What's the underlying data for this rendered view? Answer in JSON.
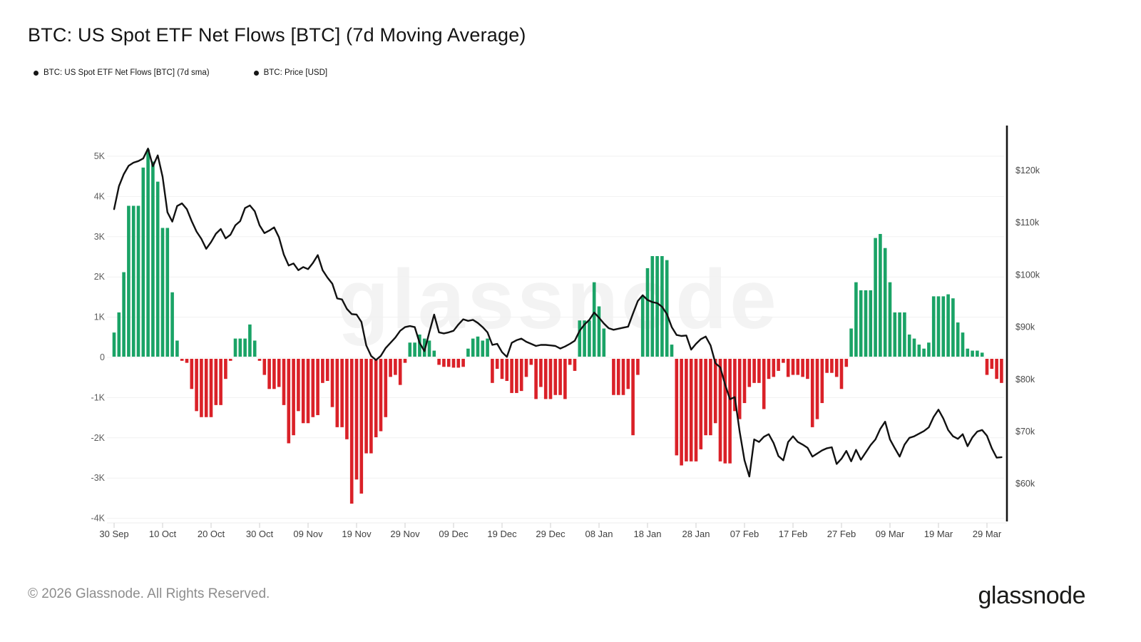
{
  "title": "BTC: US Spot ETF Net Flows [BTC] (7d Moving Average)",
  "legend": [
    {
      "label": "BTC: US Spot ETF Net Flows [BTC] (7d sma)",
      "dot_color": "#161616"
    },
    {
      "label": "BTC: Price [USD]",
      "dot_color": "#161616"
    }
  ],
  "watermark": "glassnode",
  "footer": {
    "copyright": "© 2026 Glassnode. All Rights Reserved.",
    "logo": "glassnode"
  },
  "colors": {
    "bar_positive": "#1AA366",
    "bar_negative": "#DA2128",
    "price_line": "#111111",
    "gridline": "#f1f1f1",
    "bottom_axis": "#ececec",
    "tick_mark": "#cfcfcf",
    "right_axis_line": "#141414"
  },
  "chart_data": {
    "type": "bar",
    "title": "BTC: US Spot ETF Net Flows [BTC] (7d Moving Average)",
    "x_start_label": "30 Sep",
    "x_ticks": [
      {
        "day": 0,
        "label": "30 Sep"
      },
      {
        "day": 10,
        "label": "10 Oct"
      },
      {
        "day": 20,
        "label": "20 Oct"
      },
      {
        "day": 30,
        "label": "30 Oct"
      },
      {
        "day": 40,
        "label": "09 Nov"
      },
      {
        "day": 50,
        "label": "19 Nov"
      },
      {
        "day": 60,
        "label": "29 Nov"
      },
      {
        "day": 70,
        "label": "09 Dec"
      },
      {
        "day": 80,
        "label": "19 Dec"
      },
      {
        "day": 90,
        "label": "29 Dec"
      },
      {
        "day": 100,
        "label": "08 Jan"
      },
      {
        "day": 110,
        "label": "18 Jan"
      },
      {
        "day": 120,
        "label": "28 Jan"
      },
      {
        "day": 130,
        "label": "07 Feb"
      },
      {
        "day": 140,
        "label": "17 Feb"
      },
      {
        "day": 150,
        "label": "27 Feb"
      },
      {
        "day": 160,
        "label": "09 Mar"
      },
      {
        "day": 170,
        "label": "19 Mar"
      },
      {
        "day": 180,
        "label": "29 Mar"
      }
    ],
    "left_axis": {
      "unit": "thousand BTC",
      "ticks": [
        "5K",
        "4K",
        "3K",
        "2K",
        "1K",
        "0",
        "-1K",
        "-2K",
        "-3K",
        "-4K"
      ],
      "values": [
        5,
        4,
        3,
        2,
        1,
        0,
        -1,
        -2,
        -3,
        -4
      ],
      "ylim": [
        -4.5,
        5.5
      ]
    },
    "right_axis": {
      "unit": "thousand USD",
      "ticks": [
        "$120k",
        "$110k",
        "$100k",
        "$90k",
        "$80k",
        "$70k",
        "$60k"
      ],
      "values": [
        120,
        110,
        100,
        90,
        80,
        70,
        60
      ],
      "ylim": [
        58,
        126
      ]
    },
    "grid": "horizontal-only",
    "legend_position": "top-left",
    "series": [
      {
        "name": "BTC: US Spot ETF Net Flows [BTC] (7d sma)",
        "type": "bar",
        "axis": "left",
        "unit": "K BTC",
        "values": [
          0.6,
          1.1,
          2.1,
          3.75,
          3.75,
          3.75,
          4.7,
          5.15,
          4.85,
          4.35,
          3.2,
          3.2,
          1.6,
          0.4,
          -0.05,
          -0.1,
          -0.75,
          -1.3,
          -1.45,
          -1.45,
          -1.45,
          -1.15,
          -1.15,
          -0.5,
          -0.05,
          0.45,
          0.45,
          0.45,
          0.8,
          0.4,
          -0.05,
          -0.4,
          -0.75,
          -0.75,
          -0.7,
          -1.15,
          -2.1,
          -1.9,
          -1.3,
          -1.6,
          -1.6,
          -1.45,
          -1.4,
          -0.6,
          -0.55,
          -1.2,
          -1.7,
          -1.7,
          -2.0,
          -3.6,
          -3.0,
          -3.35,
          -2.35,
          -2.35,
          -1.95,
          -1.8,
          -1.45,
          -0.45,
          -0.4,
          -0.65,
          -0.1,
          0.35,
          0.35,
          0.55,
          0.45,
          0.4,
          0.15,
          -0.15,
          -0.2,
          -0.2,
          -0.22,
          -0.22,
          -0.2,
          0.2,
          0.45,
          0.5,
          0.4,
          0.45,
          -0.6,
          -0.25,
          -0.5,
          -0.55,
          -0.85,
          -0.85,
          -0.8,
          -0.45,
          -0.15,
          -1.0,
          -0.7,
          -1.0,
          -1.0,
          -0.9,
          -0.9,
          -1.0,
          -0.15,
          -0.3,
          0.9,
          0.9,
          0.9,
          1.85,
          1.25,
          0.7,
          0.0,
          -0.9,
          -0.9,
          -0.9,
          -0.75,
          -1.9,
          -0.4,
          1.5,
          2.2,
          2.5,
          2.5,
          2.5,
          2.4,
          0.3,
          -2.4,
          -2.65,
          -2.55,
          -2.55,
          -2.55,
          -2.25,
          -1.9,
          -1.9,
          -1.6,
          -2.55,
          -2.6,
          -2.6,
          -1.3,
          -1.5,
          -1.1,
          -0.7,
          -0.6,
          -0.6,
          -1.25,
          -0.5,
          -0.45,
          -0.3,
          -0.1,
          -0.45,
          -0.4,
          -0.4,
          -0.45,
          -0.5,
          -1.7,
          -1.5,
          -1.1,
          -0.35,
          -0.35,
          -0.45,
          -0.75,
          -0.2,
          0.7,
          1.85,
          1.65,
          1.65,
          1.65,
          2.95,
          3.05,
          2.7,
          1.85,
          1.1,
          1.1,
          1.1,
          0.55,
          0.45,
          0.3,
          0.2,
          0.35,
          1.5,
          1.5,
          1.5,
          1.55,
          1.45,
          0.85,
          0.6,
          0.2,
          0.15,
          0.15,
          0.1,
          -0.4,
          -0.25,
          -0.5,
          -0.6
        ]
      },
      {
        "name": "BTC: Price [USD]",
        "type": "line",
        "axis": "right",
        "unit": "k USD",
        "values": [
          112.6,
          117.0,
          119.3,
          120.9,
          121.5,
          121.8,
          122.3,
          124.2,
          120.8,
          122.9,
          118.8,
          112.0,
          110.2,
          113.2,
          113.7,
          112.6,
          110.3,
          108.3,
          106.9,
          105.0,
          106.3,
          107.9,
          108.8,
          107.0,
          107.7,
          109.5,
          110.3,
          112.8,
          113.3,
          112.2,
          109.5,
          108.0,
          108.5,
          109.1,
          107.2,
          103.9,
          101.8,
          102.2,
          100.9,
          101.5,
          101.1,
          102.3,
          103.8,
          100.9,
          99.5,
          98.3,
          95.5,
          95.3,
          93.5,
          92.5,
          92.4,
          91.0,
          86.5,
          84.5,
          83.7,
          84.5,
          86.0,
          87.0,
          88.0,
          89.3,
          90.0,
          90.2,
          90.0,
          87.0,
          85.4,
          89.0,
          92.4,
          89.0,
          88.8,
          89.0,
          89.3,
          90.5,
          91.5,
          91.2,
          91.4,
          90.8,
          90.0,
          89.0,
          86.6,
          86.8,
          85.2,
          84.3,
          87.0,
          87.5,
          87.8,
          87.2,
          86.8,
          86.4,
          86.6,
          86.6,
          86.5,
          86.4,
          85.9,
          86.3,
          86.8,
          87.4,
          89.3,
          90.5,
          91.4,
          92.8,
          91.8,
          90.7,
          89.8,
          89.5,
          89.7,
          89.9,
          90.1,
          92.6,
          95.0,
          96.1,
          95.2,
          94.8,
          94.6,
          93.9,
          92.5,
          90.0,
          88.5,
          88.3,
          88.4,
          85.7,
          86.8,
          87.7,
          88.2,
          86.5,
          83.1,
          82.3,
          79.0,
          76.2,
          76.6,
          70.0,
          64.5,
          61.4,
          68.5,
          68.0,
          69.0,
          69.5,
          67.8,
          65.3,
          64.5,
          68.0,
          69.1,
          68.0,
          67.5,
          66.9,
          65.2,
          65.8,
          66.4,
          66.8,
          67.0,
          63.8,
          64.8,
          66.3,
          64.3,
          66.5,
          64.6,
          66.0,
          67.4,
          68.5,
          70.5,
          71.9,
          68.5,
          66.8,
          65.2,
          67.5,
          68.8,
          69.1,
          69.6,
          70.1,
          70.8,
          72.8,
          74.2,
          72.5,
          70.3,
          69.1,
          68.6,
          69.5,
          67.2,
          68.9,
          70.0,
          70.3,
          69.2,
          66.8,
          65.0,
          65.1
        ]
      }
    ]
  }
}
